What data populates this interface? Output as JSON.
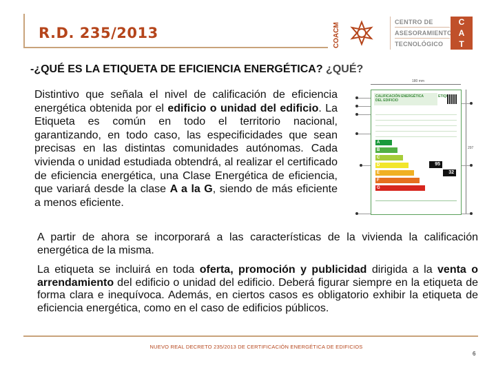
{
  "header": {
    "title": "R.D. 235/2013",
    "coacm_label": "COACM",
    "cat_lines": [
      "CENTRO DE",
      "ASESORAMIENTO",
      "TECNOLÓGICO"
    ],
    "cat_letters": [
      "C",
      "A",
      "T"
    ],
    "accent_color": "#b5451b"
  },
  "question": {
    "main": "-¿QUÉ ES LA ETIQUETA DE EFICIENCIA ENERGÉTICA?",
    "suffix": " ¿QUÉ?"
  },
  "paragraph1": {
    "t1": "Distintivo que señala el nivel de calificación de eficiencia energética obtenida por el ",
    "b1": "edificio o unidad del edificio",
    "t2": ". La Etiqueta es común en todo el territorio nacional, garantizando, en todo caso, las especificidades que sean precisas en las distintas comunidades autónomas. Cada vivienda o unidad estudiada obtendrá, al realizar el certificado de eficiencia energética, una Clase Energética de eficiencia, que variará desde la clase ",
    "b2": "A a la G",
    "t3": ", siendo de más eficiente a menos eficiente."
  },
  "paragraph2": {
    "text": "A partir de ahora se incorporará a  las características de la vivienda la calificación energética de la misma."
  },
  "paragraph3": {
    "t1": "La etiqueta se incluirá en toda ",
    "b1": "oferta, promoción y publicidad",
    "t2": " dirigida a la ",
    "b2": "venta o arrendamiento",
    "t3": " del edificio o unidad del edificio. Deberá figurar siempre en la etiqueta de forma clara e inequívoca. Además, en ciertos casos es obligatorio exhibir la etiqueta de eficiencia energética, como en el caso de edificios públicos."
  },
  "energy_label": {
    "classes": [
      "A",
      "B",
      "C",
      "D",
      "E",
      "F",
      "G"
    ],
    "class_colors": [
      "#1a9a3b",
      "#52b044",
      "#a6cc39",
      "#f2e62b",
      "#f0b023",
      "#e5701f",
      "#d7261e"
    ],
    "value_1": "95",
    "value_2": "32"
  },
  "footer": {
    "text": "NUEVO REAL DECRETO 235/2013 DE CERTIFICACIÓN ENERGÉTICA DE EDIFICIOS",
    "page_number": "6"
  }
}
